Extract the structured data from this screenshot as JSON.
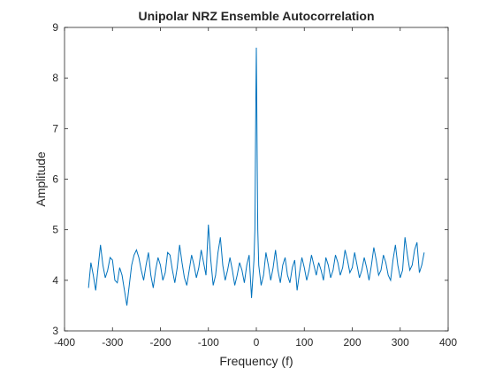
{
  "chart_data": {
    "type": "line",
    "title": "Unipolar NRZ Ensemble Autocorrelation",
    "xlabel": "Frequency (f)",
    "ylabel": "Amplitude",
    "xlim": [
      -400,
      400
    ],
    "ylim": [
      3,
      9
    ],
    "xticks": [
      -400,
      -300,
      -200,
      -100,
      0,
      100,
      200,
      300,
      400
    ],
    "yticks": [
      3,
      4,
      5,
      6,
      7,
      8,
      9
    ],
    "grid": false,
    "line_color": "#0072bd",
    "series": [
      {
        "x": [
          -350,
          -345,
          -340,
          -335,
          -330,
          -325,
          -320,
          -315,
          -310,
          -305,
          -300,
          -295,
          -290,
          -285,
          -280,
          -275,
          -270,
          -265,
          -260,
          -255,
          -250,
          -245,
          -240,
          -235,
          -230,
          -225,
          -220,
          -215,
          -210,
          -205,
          -200,
          -195,
          -190,
          -185,
          -180,
          -175,
          -170,
          -165,
          -160,
          -155,
          -150,
          -145,
          -140,
          -135,
          -130,
          -125,
          -120,
          -115,
          -110,
          -105,
          -100,
          -95,
          -90,
          -85,
          -80,
          -75,
          -70,
          -65,
          -60,
          -55,
          -50,
          -45,
          -40,
          -35,
          -30,
          -25,
          -20,
          -15,
          -10,
          -5,
          -3,
          -2,
          -1,
          0,
          1,
          2,
          3,
          5,
          10,
          15,
          20,
          25,
          30,
          35,
          40,
          45,
          50,
          55,
          60,
          65,
          70,
          75,
          80,
          85,
          90,
          95,
          100,
          105,
          110,
          115,
          120,
          125,
          130,
          135,
          140,
          145,
          150,
          155,
          160,
          165,
          170,
          175,
          180,
          185,
          190,
          195,
          200,
          205,
          210,
          215,
          220,
          225,
          230,
          235,
          240,
          245,
          250,
          255,
          260,
          265,
          270,
          275,
          280,
          285,
          290,
          295,
          300,
          305,
          310,
          315,
          320,
          325,
          330,
          335,
          340,
          345,
          350
        ],
        "y": [
          3.85,
          4.35,
          4.1,
          3.8,
          4.25,
          4.7,
          4.3,
          4.05,
          4.2,
          4.45,
          4.4,
          4.0,
          3.95,
          4.25,
          4.1,
          3.8,
          3.5,
          3.9,
          4.3,
          4.5,
          4.6,
          4.45,
          4.2,
          4.0,
          4.3,
          4.55,
          4.1,
          3.85,
          4.2,
          4.45,
          4.3,
          4.0,
          4.15,
          4.55,
          4.5,
          4.2,
          3.95,
          4.25,
          4.7,
          4.35,
          4.05,
          3.9,
          4.2,
          4.5,
          4.3,
          4.05,
          4.25,
          4.6,
          4.35,
          4.1,
          5.1,
          4.4,
          3.9,
          4.1,
          4.55,
          4.85,
          4.3,
          4.0,
          4.2,
          4.45,
          4.2,
          3.9,
          4.1,
          4.35,
          4.2,
          3.95,
          4.3,
          4.5,
          3.65,
          4.4,
          5.0,
          6.3,
          7.6,
          8.6,
          7.4,
          6.1,
          5.0,
          4.3,
          3.9,
          4.1,
          4.55,
          4.3,
          4.0,
          4.25,
          4.6,
          4.2,
          3.95,
          4.3,
          4.45,
          4.1,
          3.95,
          4.25,
          4.4,
          3.8,
          4.15,
          4.45,
          4.25,
          4.0,
          4.2,
          4.5,
          4.3,
          4.1,
          4.35,
          4.2,
          4.0,
          4.45,
          4.3,
          4.05,
          4.2,
          4.5,
          4.35,
          4.1,
          4.25,
          4.6,
          4.4,
          4.15,
          4.25,
          4.55,
          4.3,
          4.05,
          4.2,
          4.45,
          4.25,
          4.0,
          4.3,
          4.65,
          4.4,
          4.1,
          4.2,
          4.5,
          4.35,
          4.1,
          4.0,
          4.4,
          4.7,
          4.3,
          4.05,
          4.2,
          4.85,
          4.5,
          4.2,
          4.3,
          4.6,
          4.75,
          4.15,
          4.3,
          4.55
        ]
      }
    ]
  }
}
